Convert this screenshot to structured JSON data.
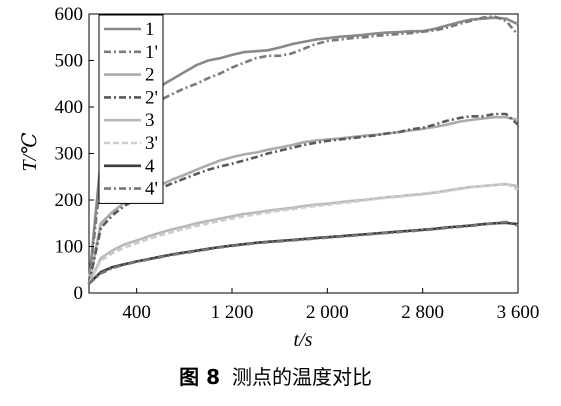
{
  "chart_data": {
    "type": "line",
    "title": "",
    "xlabel": "t/s",
    "ylabel": "T/℃",
    "xlim": [
      0,
      3600
    ],
    "ylim": [
      0,
      600
    ],
    "xticks": [
      400,
      1200,
      2000,
      2800,
      3600
    ],
    "xtick_labels": [
      "400",
      "1 200",
      "2 000",
      "2 800",
      "3 600"
    ],
    "yticks": [
      0,
      100,
      200,
      300,
      400,
      500,
      600
    ],
    "ytick_labels": [
      "0",
      "100",
      "200",
      "300",
      "400",
      "500",
      "600"
    ],
    "grid": false,
    "legend_position": "top-left",
    "series": [
      {
        "name": "1",
        "style": "solid",
        "color": "#8a8a8a",
        "x": [
          0,
          100,
          200,
          300,
          400,
          500,
          600,
          700,
          800,
          900,
          1000,
          1100,
          1200,
          1300,
          1400,
          1500,
          1600,
          1700,
          1800,
          1900,
          2000,
          2100,
          2200,
          2300,
          2400,
          2500,
          2600,
          2700,
          2800,
          2900,
          3000,
          3100,
          3200,
          3300,
          3400,
          3500,
          3600
        ],
        "y": [
          20,
          290,
          350,
          385,
          410,
          430,
          445,
          460,
          475,
          490,
          500,
          505,
          512,
          518,
          520,
          522,
          528,
          535,
          540,
          545,
          548,
          551,
          553,
          555,
          558,
          560,
          561,
          563,
          563,
          568,
          575,
          582,
          588,
          590,
          592,
          590,
          578
        ]
      },
      {
        "name": "1'",
        "style": "dashdot",
        "color": "#7a7a7a",
        "x": [
          0,
          100,
          200,
          300,
          400,
          500,
          600,
          700,
          800,
          900,
          1000,
          1100,
          1200,
          1300,
          1400,
          1500,
          1600,
          1700,
          1800,
          1900,
          2000,
          2100,
          2200,
          2300,
          2400,
          2500,
          2600,
          2700,
          2800,
          2900,
          3000,
          3100,
          3200,
          3300,
          3400,
          3500,
          3600
        ],
        "y": [
          20,
          250,
          310,
          350,
          375,
          400,
          415,
          428,
          440,
          450,
          462,
          472,
          485,
          495,
          505,
          510,
          510,
          515,
          525,
          535,
          542,
          545,
          548,
          550,
          553,
          555,
          557,
          559,
          562,
          565,
          570,
          578,
          585,
          592,
          595,
          585,
          555
        ]
      },
      {
        "name": "2",
        "style": "solid",
        "color": "#ababab",
        "x": [
          0,
          100,
          200,
          300,
          400,
          500,
          600,
          700,
          800,
          900,
          1000,
          1100,
          1200,
          1300,
          1400,
          1500,
          1600,
          1700,
          1800,
          1900,
          2000,
          2100,
          2200,
          2300,
          2400,
          2500,
          2600,
          2700,
          2800,
          2900,
          3000,
          3100,
          3200,
          3300,
          3400,
          3500,
          3600
        ],
        "y": [
          20,
          150,
          175,
          195,
          208,
          220,
          232,
          244,
          254,
          265,
          275,
          285,
          292,
          298,
          302,
          308,
          313,
          318,
          324,
          328,
          330,
          332,
          335,
          338,
          340,
          343,
          346,
          350,
          353,
          357,
          362,
          368,
          372,
          375,
          378,
          378,
          372
        ]
      },
      {
        "name": "2'",
        "style": "dashdot",
        "color": "#5a5a5a",
        "x": [
          0,
          100,
          200,
          300,
          400,
          500,
          600,
          700,
          800,
          900,
          1000,
          1100,
          1200,
          1300,
          1400,
          1500,
          1600,
          1700,
          1800,
          1900,
          2000,
          2100,
          2200,
          2300,
          2400,
          2500,
          2600,
          2700,
          2800,
          2900,
          3000,
          3100,
          3200,
          3300,
          3400,
          3500,
          3600
        ],
        "y": [
          20,
          140,
          168,
          188,
          202,
          214,
          225,
          236,
          246,
          256,
          265,
          272,
          278,
          285,
          292,
          300,
          306,
          312,
          318,
          323,
          327,
          330,
          333,
          336,
          339,
          343,
          346,
          352,
          355,
          362,
          370,
          376,
          380,
          380,
          385,
          385,
          362
        ]
      },
      {
        "name": "3",
        "style": "solid",
        "color": "#b9b9b9",
        "x": [
          0,
          100,
          200,
          300,
          400,
          500,
          600,
          700,
          800,
          900,
          1000,
          1100,
          1200,
          1300,
          1400,
          1500,
          1600,
          1700,
          1800,
          1900,
          2000,
          2100,
          2200,
          2300,
          2400,
          2500,
          2600,
          2700,
          2800,
          2900,
          3000,
          3100,
          3200,
          3300,
          3400,
          3500,
          3600
        ],
        "y": [
          20,
          75,
          92,
          105,
          113,
          122,
          130,
          137,
          143,
          150,
          155,
          160,
          165,
          170,
          173,
          177,
          180,
          183,
          187,
          190,
          192,
          195,
          198,
          200,
          203,
          206,
          208,
          211,
          213,
          216,
          220,
          224,
          228,
          230,
          232,
          234,
          230
        ]
      },
      {
        "name": "3'",
        "style": "dashed",
        "color": "#cccccc",
        "x": [
          0,
          100,
          200,
          300,
          400,
          500,
          600,
          700,
          800,
          900,
          1000,
          1100,
          1200,
          1300,
          1400,
          1500,
          1600,
          1700,
          1800,
          1900,
          2000,
          2100,
          2200,
          2300,
          2400,
          2500,
          2600,
          2700,
          2800,
          2900,
          3000,
          3100,
          3200,
          3300,
          3400,
          3500,
          3600
        ],
        "y": [
          20,
          70,
          86,
          98,
          107,
          116,
          124,
          131,
          138,
          144,
          150,
          155,
          160,
          165,
          169,
          173,
          177,
          180,
          184,
          187,
          190,
          193,
          196,
          199,
          202,
          205,
          207,
          210,
          212,
          215,
          219,
          223,
          227,
          230,
          232,
          235,
          222
        ]
      },
      {
        "name": "4",
        "style": "solid",
        "color": "#3c3c3c",
        "x": [
          0,
          100,
          200,
          300,
          400,
          500,
          600,
          700,
          800,
          900,
          1000,
          1100,
          1200,
          1300,
          1400,
          1500,
          1600,
          1700,
          1800,
          1900,
          2000,
          2100,
          2200,
          2300,
          2400,
          2500,
          2600,
          2700,
          2800,
          2900,
          3000,
          3100,
          3200,
          3300,
          3400,
          3500,
          3600
        ],
        "y": [
          20,
          45,
          56,
          62,
          68,
          73,
          78,
          83,
          87,
          91,
          95,
          99,
          102,
          105,
          108,
          110,
          112,
          114,
          116,
          118,
          120,
          122,
          124,
          126,
          128,
          130,
          132,
          134,
          136,
          138,
          141,
          143,
          145,
          148,
          150,
          151,
          148
        ]
      },
      {
        "name": "4'",
        "style": "dashdot",
        "color": "#777777",
        "x": [
          0,
          100,
          200,
          300,
          400,
          500,
          600,
          700,
          800,
          900,
          1000,
          1100,
          1200,
          1300,
          1400,
          1500,
          1600,
          1700,
          1800,
          1900,
          2000,
          2100,
          2200,
          2300,
          2400,
          2500,
          2600,
          2700,
          2800,
          2900,
          3000,
          3100,
          3200,
          3300,
          3400,
          3500,
          3600
        ],
        "y": [
          20,
          42,
          54,
          61,
          67,
          72,
          77,
          82,
          86,
          90,
          94,
          98,
          101,
          104,
          107,
          109,
          111,
          113,
          115,
          117,
          119,
          121,
          123,
          125,
          127,
          129,
          131,
          133,
          135,
          137,
          140,
          142,
          144,
          147,
          150,
          153,
          145
        ]
      }
    ]
  },
  "caption": {
    "figure_number": "图 8",
    "text": "测点的温度对比"
  }
}
